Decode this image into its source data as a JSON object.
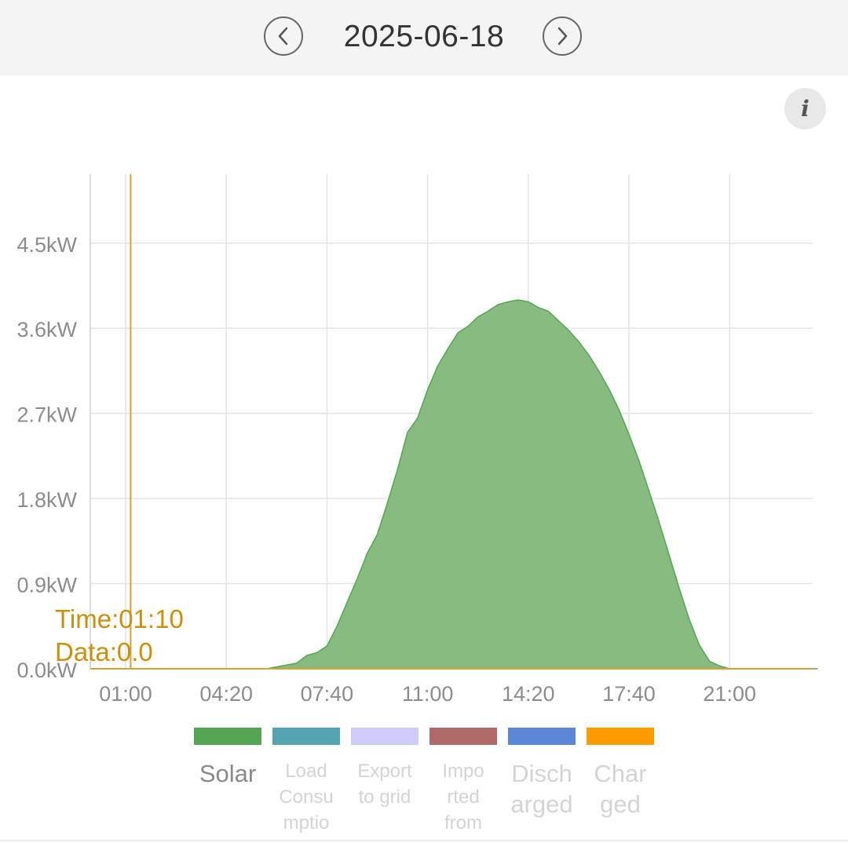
{
  "header": {
    "date": "2025-06-18",
    "prev_icon": "chevron-left-icon",
    "next_icon": "chevron-right-icon"
  },
  "info": {
    "icon": "info-icon",
    "label": "i"
  },
  "tooltip": {
    "time": "Time:01:10",
    "data": "Data:0.0"
  },
  "chart_data": {
    "type": "area",
    "x_unit": "time",
    "y_ticks": [
      "0.0kW",
      "0.9kW",
      "1.8kW",
      "2.7kW",
      "3.6kW",
      "4.5kW"
    ],
    "x_ticks": [
      "01:00",
      "04:20",
      "07:40",
      "11:00",
      "14:20",
      "17:40",
      "21:00"
    ],
    "ylim": [
      0,
      5.2
    ],
    "xlim": [
      "00:00",
      "23:55"
    ],
    "grid": true,
    "cursor_time": "01:10",
    "series": [
      {
        "name": "Solar",
        "color": "#55a555",
        "fill": "#88bb80",
        "points": [
          [
            "00:00",
            0
          ],
          [
            "05:40",
            0
          ],
          [
            "06:00",
            0.02
          ],
          [
            "06:20",
            0.04
          ],
          [
            "06:40",
            0.06
          ],
          [
            "07:00",
            0.14
          ],
          [
            "07:20",
            0.17
          ],
          [
            "07:40",
            0.24
          ],
          [
            "08:00",
            0.45
          ],
          [
            "08:20",
            0.7
          ],
          [
            "08:40",
            0.95
          ],
          [
            "09:00",
            1.22
          ],
          [
            "09:20",
            1.42
          ],
          [
            "09:40",
            1.75
          ],
          [
            "10:00",
            2.1
          ],
          [
            "10:20",
            2.5
          ],
          [
            "10:40",
            2.65
          ],
          [
            "11:00",
            2.95
          ],
          [
            "11:20",
            3.2
          ],
          [
            "11:40",
            3.38
          ],
          [
            "12:00",
            3.55
          ],
          [
            "12:20",
            3.62
          ],
          [
            "12:40",
            3.72
          ],
          [
            "13:00",
            3.78
          ],
          [
            "13:20",
            3.85
          ],
          [
            "13:40",
            3.88
          ],
          [
            "14:00",
            3.9
          ],
          [
            "14:20",
            3.88
          ],
          [
            "14:40",
            3.82
          ],
          [
            "15:00",
            3.78
          ],
          [
            "15:20",
            3.68
          ],
          [
            "15:40",
            3.58
          ],
          [
            "16:00",
            3.46
          ],
          [
            "16:20",
            3.32
          ],
          [
            "16:40",
            3.15
          ],
          [
            "17:00",
            2.96
          ],
          [
            "17:20",
            2.74
          ],
          [
            "17:40",
            2.48
          ],
          [
            "18:00",
            2.2
          ],
          [
            "18:20",
            1.88
          ],
          [
            "18:40",
            1.55
          ],
          [
            "19:00",
            1.2
          ],
          [
            "19:20",
            0.85
          ],
          [
            "19:40",
            0.52
          ],
          [
            "20:00",
            0.25
          ],
          [
            "20:20",
            0.08
          ],
          [
            "20:40",
            0.03
          ],
          [
            "21:00",
            0
          ],
          [
            "23:55",
            0
          ]
        ]
      }
    ],
    "legend": [
      {
        "label": "Solar",
        "color": "#55a555",
        "active": true
      },
      {
        "label": "Load\nConsu\nmptio",
        "color": "#55a5b0",
        "active": false
      },
      {
        "label": "Export\nto grid",
        "color": "#d0ccfa",
        "active": false
      },
      {
        "label": "Impo\nrted\nfrom",
        "color": "#b06a6a",
        "active": false
      },
      {
        "label": "Disch\narged",
        "color": "#5b88d6",
        "active": false
      },
      {
        "label": "Char\nged",
        "color": "#ff9900",
        "active": false
      }
    ]
  }
}
